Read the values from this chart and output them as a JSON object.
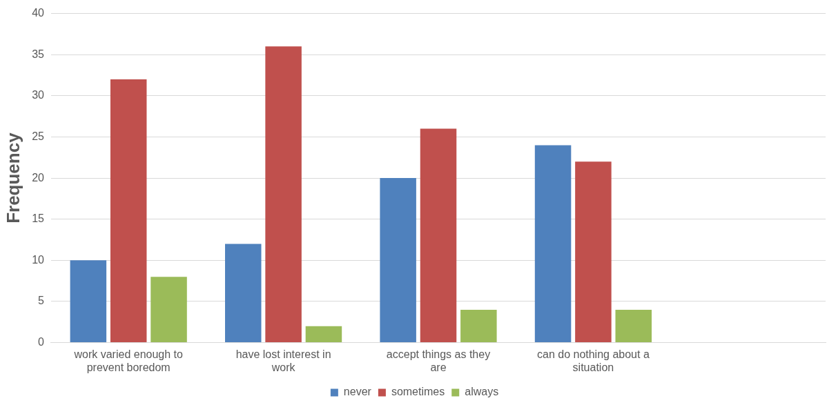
{
  "chart_data": {
    "type": "bar",
    "ylabel": "Frequency",
    "categories": [
      "work varied enough to prevent boredom",
      "have lost interest in work",
      "accept things as they are",
      "can do nothing about a situation",
      null
    ],
    "series": [
      {
        "name": "never",
        "color": "#4f81bd",
        "values": [
          10,
          12,
          20,
          24,
          null
        ]
      },
      {
        "name": "sometimes",
        "color": "#c0504d",
        "values": [
          32,
          36,
          26,
          22,
          null
        ]
      },
      {
        "name": "always",
        "color": "#9bbb59",
        "values": [
          8,
          2,
          4,
          4,
          null
        ]
      }
    ],
    "ylim": [
      0,
      40
    ],
    "yticks": [
      0,
      5,
      10,
      15,
      20,
      25,
      30,
      35,
      40
    ],
    "grid": "y",
    "legend": "bottom"
  }
}
